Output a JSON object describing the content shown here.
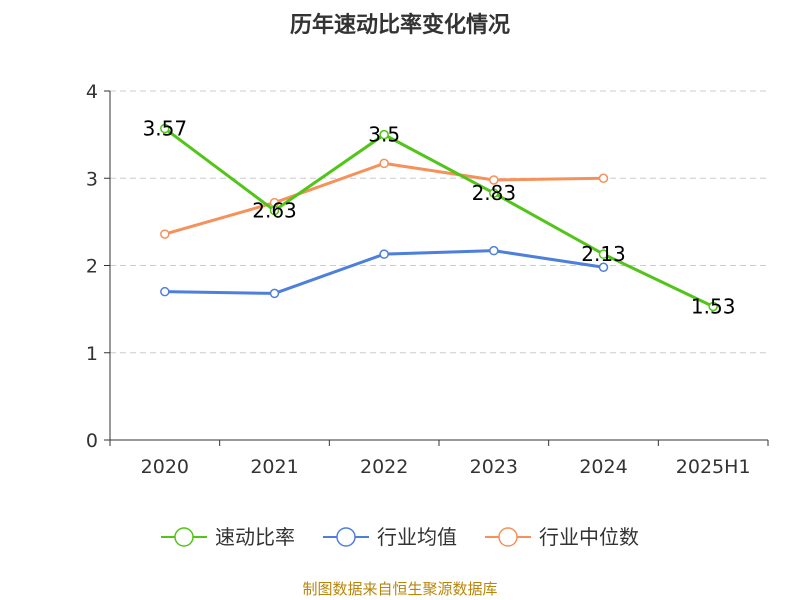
{
  "chart_data": {
    "type": "line",
    "title": "历年速动比率变化情况",
    "categories": [
      "2020",
      "2021",
      "2022",
      "2023",
      "2024",
      "2025H1"
    ],
    "ylim": [
      0,
      4
    ],
    "yticks": [
      "0",
      "1",
      "2",
      "3",
      "4"
    ],
    "grid": "horizontal dashed",
    "legend_position": "bottom",
    "series": [
      {
        "name": "速动比率",
        "color": "#52c41a",
        "values": [
          3.57,
          2.63,
          3.5,
          2.83,
          2.13,
          1.53
        ],
        "labels": [
          "3.57",
          "2.63",
          "3.5",
          "2.83",
          "2.13",
          "1.53"
        ]
      },
      {
        "name": "行业均值",
        "color": "#4e7fdb",
        "values": [
          1.7,
          1.68,
          2.13,
          2.17,
          1.98,
          null
        ]
      },
      {
        "name": "行业中位数",
        "color": "#f5915a",
        "values": [
          2.36,
          2.72,
          3.17,
          2.98,
          3.0,
          null
        ]
      }
    ]
  },
  "source": "制图数据来自恒生聚源数据库"
}
